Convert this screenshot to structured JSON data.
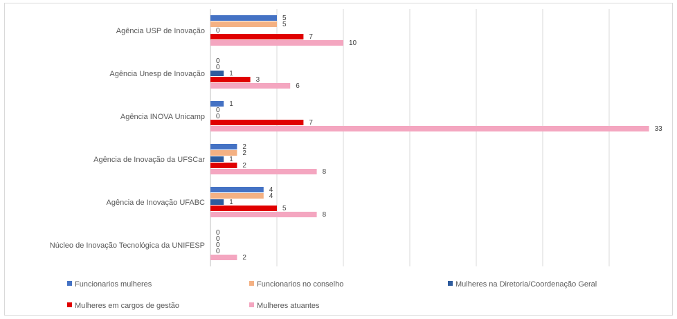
{
  "chart_data": {
    "type": "bar",
    "orientation": "horizontal",
    "title": "",
    "xlabel": "",
    "ylabel": "",
    "xlim": [
      0,
      33
    ],
    "grid": true,
    "legend_position": "bottom",
    "categories": [
      "Agência USP de Inovação",
      "Agência Unesp de Inovação",
      "Agência INOVA Unicamp",
      "Agência de Inovação da UFSCar",
      "Agência de Inovação UFABC",
      "Núcleo de Inovação Tecnológica da UNIFESP"
    ],
    "series": [
      {
        "name": "Funcionarios mulheres",
        "color": "#4472c4",
        "values": [
          5,
          0,
          1,
          2,
          4,
          0
        ]
      },
      {
        "name": "Funcionarios no conselho",
        "color": "#f4b183",
        "values": [
          5,
          0,
          0,
          2,
          4,
          0
        ]
      },
      {
        "name": "Mulheres na Diretoria/Coordenação Geral",
        "color": "#2e5c9e",
        "values": [
          0,
          1,
          0,
          1,
          1,
          0
        ]
      },
      {
        "name": "Mulheres em cargos de gestão",
        "color": "#e00000",
        "values": [
          7,
          3,
          7,
          2,
          5,
          0
        ]
      },
      {
        "name": "Mulheres atuantes",
        "color": "#f4a6c0",
        "values": [
          10,
          6,
          33,
          8,
          8,
          2
        ]
      }
    ]
  }
}
